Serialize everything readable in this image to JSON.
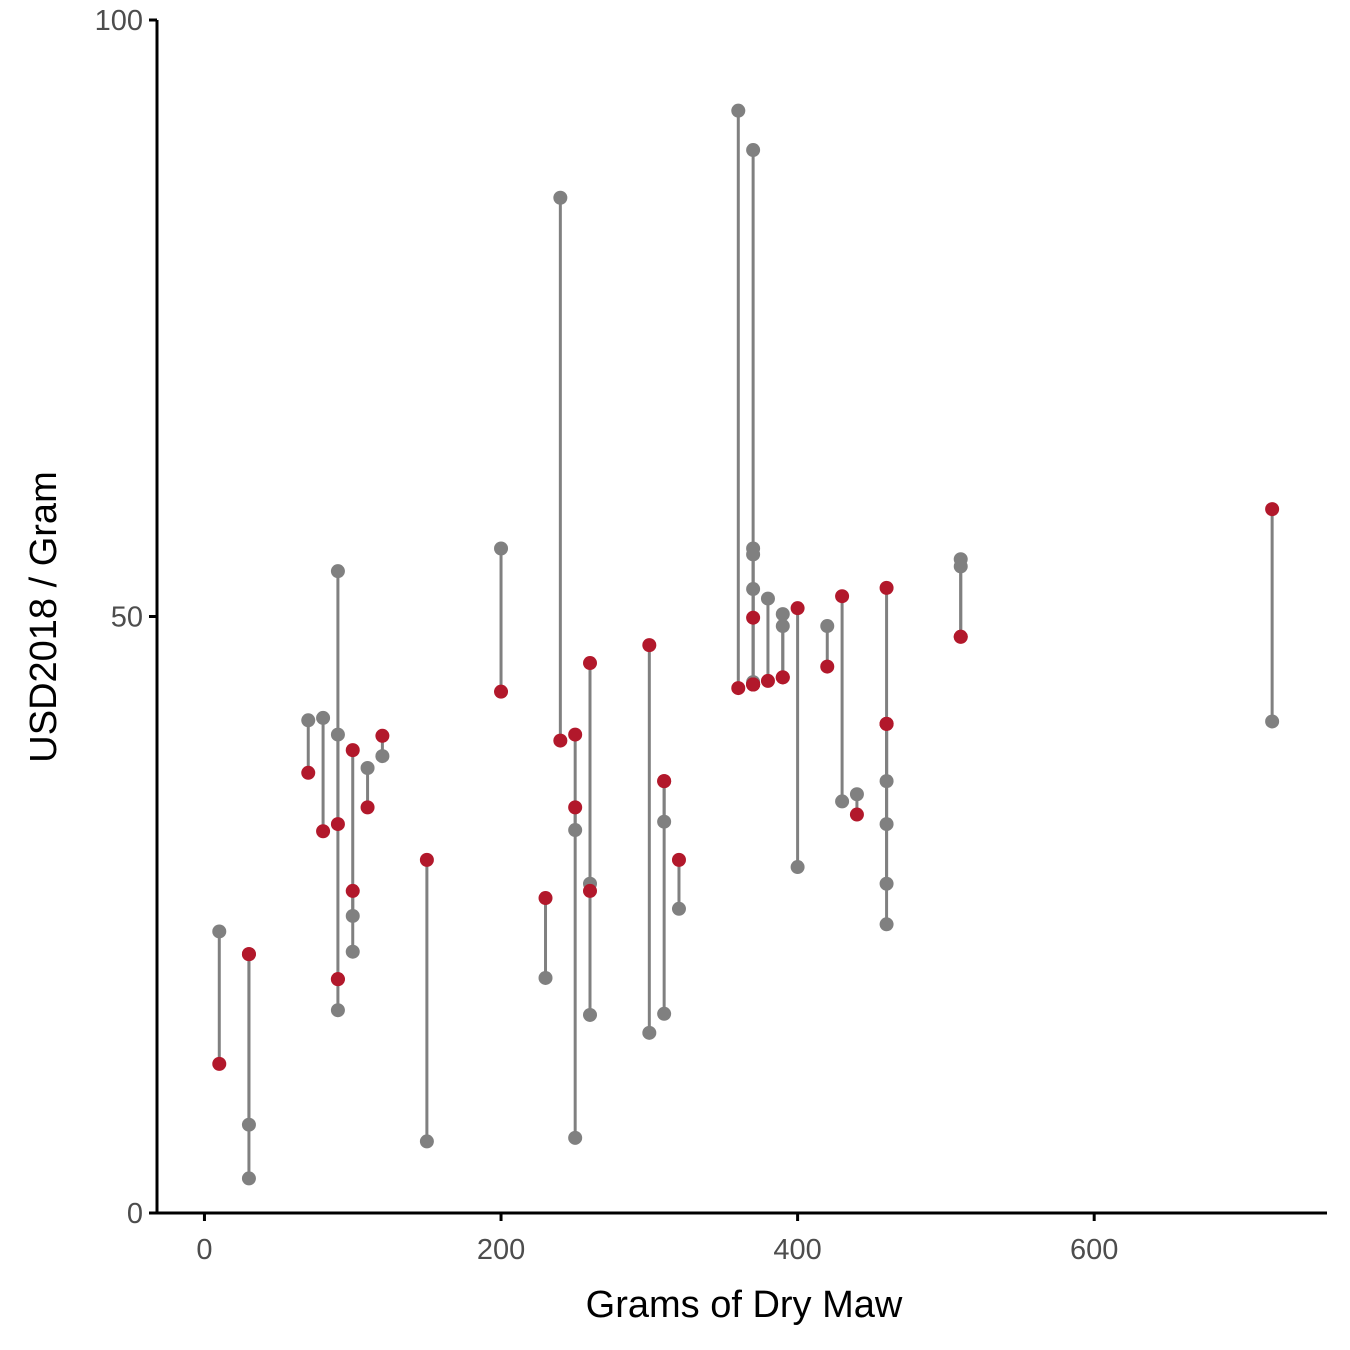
{
  "chart_data": {
    "type": "scatter",
    "title": "",
    "xlabel": "Grams of Dry Maw",
    "ylabel": "USD2018 / Gram",
    "xlim": [
      -32,
      757
    ],
    "ylim": [
      0,
      100
    ],
    "x_ticks": [
      0,
      200,
      400,
      600
    ],
    "y_ticks": [
      0,
      50,
      100
    ],
    "grid": false,
    "legend": "none",
    "colors": {
      "grey": "#808080",
      "red": "#b2182b",
      "axis": "#000000"
    },
    "segments": [
      {
        "x": 10,
        "grey": 23.6,
        "red": 12.5
      },
      {
        "x": 30,
        "grey": 7.4,
        "red": 21.7
      },
      {
        "x": 30,
        "grey": 2.9,
        "red": 21.7
      },
      {
        "x": 70,
        "grey": 41.3,
        "red": 36.9
      },
      {
        "x": 80,
        "grey": 41.5,
        "red": 32.0
      },
      {
        "x": 90,
        "grey": 53.8,
        "red": 32.6
      },
      {
        "x": 90,
        "grey": 40.1,
        "red": 19.6
      },
      {
        "x": 90,
        "grey": 17.0,
        "red": 19.6
      },
      {
        "x": 100,
        "grey": 24.9,
        "red": 38.8
      },
      {
        "x": 100,
        "grey": 21.9,
        "red": 27.0
      },
      {
        "x": 110,
        "grey": 37.3,
        "red": 34.0
      },
      {
        "x": 120,
        "grey": 38.3,
        "red": 40.0
      },
      {
        "x": 150,
        "grey": 6.0,
        "red": 29.6
      },
      {
        "x": 200,
        "grey": 55.7,
        "red": 43.7
      },
      {
        "x": 230,
        "grey": 19.7,
        "red": 26.4
      },
      {
        "x": 240,
        "grey": 85.1,
        "red": 39.6
      },
      {
        "x": 250,
        "grey": 6.3,
        "red": 40.1
      },
      {
        "x": 250,
        "grey": 32.1,
        "red": 34.0
      },
      {
        "x": 260,
        "grey": 16.6,
        "red": 46.1
      },
      {
        "x": 260,
        "grey": 27.6,
        "red": 27.0
      },
      {
        "x": 300,
        "grey": 15.1,
        "red": 47.6
      },
      {
        "x": 310,
        "grey": 16.7,
        "red": 36.2
      },
      {
        "x": 310,
        "grey": 32.8,
        "red": 36.2
      },
      {
        "x": 320,
        "grey": 25.5,
        "red": 29.6
      },
      {
        "x": 360,
        "grey": 92.4,
        "red": 44.0
      },
      {
        "x": 370,
        "grey": 89.1,
        "red": 49.9
      },
      {
        "x": 370,
        "grey": 55.7,
        "red": 44.3
      },
      {
        "x": 370,
        "grey": 55.2,
        "red": 44.3
      },
      {
        "x": 370,
        "grey": 52.3,
        "red": 44.3
      },
      {
        "x": 370,
        "grey": 44.5,
        "red": 44.3
      },
      {
        "x": 380,
        "grey": 51.5,
        "red": 44.6
      },
      {
        "x": 390,
        "grey": 50.2,
        "red": 44.9
      },
      {
        "x": 390,
        "grey": 49.2,
        "red": 44.9
      },
      {
        "x": 400,
        "grey": 29.0,
        "red": 50.7
      },
      {
        "x": 420,
        "grey": 49.2,
        "red": 45.8
      },
      {
        "x": 430,
        "grey": 34.5,
        "red": 51.7
      },
      {
        "x": 440,
        "grey": 35.1,
        "red": 33.4
      },
      {
        "x": 460,
        "grey": 36.2,
        "red": 52.4
      },
      {
        "x": 460,
        "grey": 32.6,
        "red": 41.0
      },
      {
        "x": 460,
        "grey": 27.6,
        "red": 41.0
      },
      {
        "x": 460,
        "grey": 24.2,
        "red": 41.0
      },
      {
        "x": 510,
        "grey": 54.8,
        "red": 48.3
      },
      {
        "x": 510,
        "grey": 54.2,
        "red": 48.3
      },
      {
        "x": 720,
        "grey": 41.2,
        "red": 59.0
      }
    ]
  }
}
